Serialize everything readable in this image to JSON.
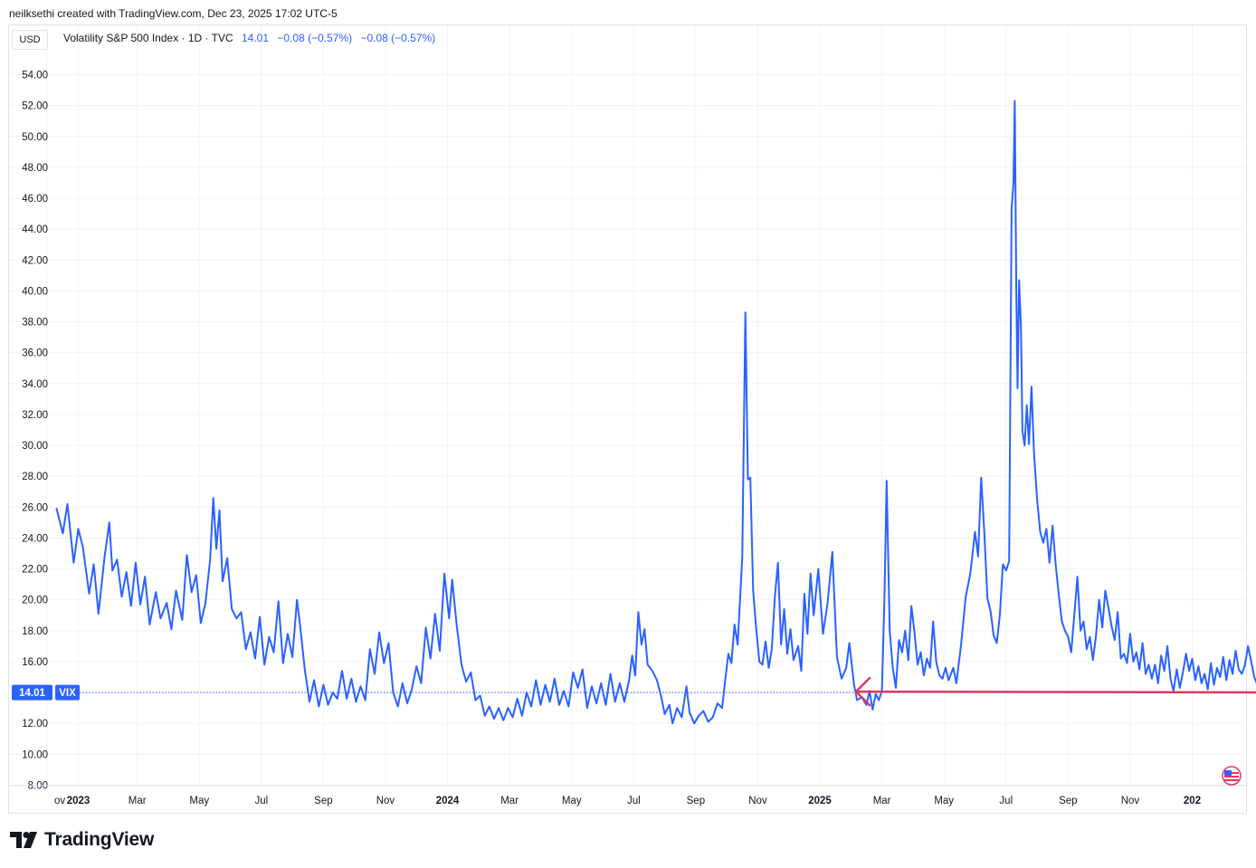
{
  "header": {
    "credit": "neilksethi created with TradingView.com, Dec 23, 2025 17:02 UTC-5"
  },
  "currency": "USD",
  "legend": {
    "symbol": "Volatility S&P 500 Index · 1D · TVC",
    "last": "14.01",
    "change1": "−0.08 (−0.57%)",
    "change2": "−0.08 (−0.57%)"
  },
  "price_badge": {
    "value": "14.01",
    "ticker": "VIX"
  },
  "footer": {
    "brand": "TradingView"
  },
  "colors": {
    "line": "#2962ff",
    "arrow": "#e0385c",
    "grid": "#f0f3fa",
    "badge": "#2962ff"
  },
  "chart_data": {
    "type": "line",
    "series_name": "VIX",
    "ylim": [
      8,
      56
    ],
    "y_ticks": [
      "8.00",
      "10.00",
      "12.00",
      "14.00",
      "16.00",
      "18.00",
      "20.00",
      "22.00",
      "24.00",
      "26.00",
      "28.00",
      "30.00",
      "32.00",
      "34.00",
      "36.00",
      "38.00",
      "40.00",
      "42.00",
      "44.00",
      "46.00",
      "48.00",
      "50.00",
      "52.00",
      "54.00"
    ],
    "x_ticks": [
      {
        "label": "ov",
        "pos": -0.32,
        "bold": false
      },
      {
        "label": "2023",
        "pos": 0.7,
        "bold": true
      },
      {
        "label": "Mar",
        "pos": 2.6,
        "bold": false
      },
      {
        "label": "May",
        "pos": 4.6,
        "bold": false
      },
      {
        "label": "Jul",
        "pos": 6.6,
        "bold": false
      },
      {
        "label": "Sep",
        "pos": 8.6,
        "bold": false
      },
      {
        "label": "Nov",
        "pos": 10.6,
        "bold": false
      },
      {
        "label": "2024",
        "pos": 12.6,
        "bold": true
      },
      {
        "label": "Mar",
        "pos": 14.6,
        "bold": false
      },
      {
        "label": "May",
        "pos": 16.6,
        "bold": false
      },
      {
        "label": "Jul",
        "pos": 18.6,
        "bold": false
      },
      {
        "label": "Sep",
        "pos": 20.6,
        "bold": false
      },
      {
        "label": "Nov",
        "pos": 22.6,
        "bold": false
      },
      {
        "label": "2025",
        "pos": 24.6,
        "bold": true
      },
      {
        "label": "Mar",
        "pos": 26.6,
        "bold": false
      },
      {
        "label": "May",
        "pos": 28.6,
        "bold": false
      },
      {
        "label": "Jul",
        "pos": 30.6,
        "bold": false
      },
      {
        "label": "Sep",
        "pos": 32.6,
        "bold": false
      },
      {
        "label": "Nov",
        "pos": 34.6,
        "bold": false
      },
      {
        "label": "202",
        "pos": 36.6,
        "bold": true
      }
    ],
    "points": [
      [
        0.0,
        25.9
      ],
      [
        0.2,
        24.3
      ],
      [
        0.35,
        26.2
      ],
      [
        0.55,
        22.4
      ],
      [
        0.7,
        24.6
      ],
      [
        0.85,
        23.4
      ],
      [
        1.05,
        20.4
      ],
      [
        1.2,
        22.3
      ],
      [
        1.35,
        19.1
      ],
      [
        1.55,
        22.8
      ],
      [
        1.7,
        25.0
      ],
      [
        1.8,
        21.9
      ],
      [
        1.95,
        22.6
      ],
      [
        2.1,
        20.2
      ],
      [
        2.25,
        21.8
      ],
      [
        2.4,
        19.6
      ],
      [
        2.55,
        22.4
      ],
      [
        2.7,
        19.7
      ],
      [
        2.85,
        21.5
      ],
      [
        3.0,
        18.4
      ],
      [
        3.2,
        20.5
      ],
      [
        3.35,
        18.8
      ],
      [
        3.55,
        19.8
      ],
      [
        3.7,
        18.1
      ],
      [
        3.85,
        20.6
      ],
      [
        4.05,
        18.7
      ],
      [
        4.2,
        22.9
      ],
      [
        4.35,
        20.5
      ],
      [
        4.5,
        21.6
      ],
      [
        4.65,
        18.5
      ],
      [
        4.8,
        19.8
      ],
      [
        4.95,
        22.6
      ],
      [
        5.05,
        26.6
      ],
      [
        5.15,
        23.3
      ],
      [
        5.25,
        25.8
      ],
      [
        5.35,
        21.2
      ],
      [
        5.5,
        22.7
      ],
      [
        5.65,
        19.4
      ],
      [
        5.8,
        18.8
      ],
      [
        5.95,
        19.2
      ],
      [
        6.1,
        16.8
      ],
      [
        6.25,
        17.9
      ],
      [
        6.4,
        16.2
      ],
      [
        6.55,
        18.9
      ],
      [
        6.7,
        15.8
      ],
      [
        6.85,
        17.6
      ],
      [
        7.0,
        16.6
      ],
      [
        7.15,
        19.9
      ],
      [
        7.3,
        15.9
      ],
      [
        7.45,
        17.8
      ],
      [
        7.6,
        16.3
      ],
      [
        7.75,
        20.0
      ],
      [
        7.85,
        18.3
      ],
      [
        8.0,
        15.5
      ],
      [
        8.15,
        13.4
      ],
      [
        8.3,
        14.8
      ],
      [
        8.45,
        13.1
      ],
      [
        8.6,
        14.5
      ],
      [
        8.75,
        13.2
      ],
      [
        8.9,
        14.0
      ],
      [
        9.05,
        13.6
      ],
      [
        9.2,
        15.4
      ],
      [
        9.35,
        13.6
      ],
      [
        9.5,
        14.9
      ],
      [
        9.65,
        13.4
      ],
      [
        9.8,
        14.4
      ],
      [
        9.95,
        13.5
      ],
      [
        10.1,
        16.8
      ],
      [
        10.25,
        15.2
      ],
      [
        10.4,
        17.9
      ],
      [
        10.55,
        15.9
      ],
      [
        10.7,
        17.2
      ],
      [
        10.85,
        14.0
      ],
      [
        11.0,
        13.1
      ],
      [
        11.15,
        14.6
      ],
      [
        11.3,
        13.3
      ],
      [
        11.45,
        14.2
      ],
      [
        11.6,
        15.7
      ],
      [
        11.75,
        14.6
      ],
      [
        11.9,
        18.2
      ],
      [
        12.05,
        16.2
      ],
      [
        12.2,
        19.1
      ],
      [
        12.35,
        16.7
      ],
      [
        12.5,
        21.7
      ],
      [
        12.65,
        18.8
      ],
      [
        12.75,
        21.3
      ],
      [
        12.9,
        18.3
      ],
      [
        13.05,
        15.8
      ],
      [
        13.2,
        14.7
      ],
      [
        13.35,
        15.3
      ],
      [
        13.5,
        13.5
      ],
      [
        13.65,
        13.8
      ],
      [
        13.8,
        12.5
      ],
      [
        13.95,
        13.1
      ],
      [
        14.1,
        12.3
      ],
      [
        14.25,
        13.0
      ],
      [
        14.4,
        12.2
      ],
      [
        14.55,
        13.0
      ],
      [
        14.7,
        12.4
      ],
      [
        14.85,
        13.6
      ],
      [
        15.0,
        12.5
      ],
      [
        15.15,
        14.0
      ],
      [
        15.3,
        13.1
      ],
      [
        15.45,
        14.8
      ],
      [
        15.6,
        13.2
      ],
      [
        15.75,
        14.5
      ],
      [
        15.9,
        13.4
      ],
      [
        16.05,
        14.9
      ],
      [
        16.2,
        13.2
      ],
      [
        16.35,
        14.1
      ],
      [
        16.5,
        13.1
      ],
      [
        16.65,
        15.3
      ],
      [
        16.8,
        14.3
      ],
      [
        16.95,
        15.5
      ],
      [
        17.1,
        13.0
      ],
      [
        17.25,
        14.4
      ],
      [
        17.4,
        13.3
      ],
      [
        17.55,
        14.6
      ],
      [
        17.7,
        13.2
      ],
      [
        17.85,
        15.2
      ],
      [
        18.0,
        13.4
      ],
      [
        18.15,
        14.6
      ],
      [
        18.3,
        13.4
      ],
      [
        18.45,
        14.8
      ],
      [
        18.55,
        16.4
      ],
      [
        18.65,
        15.1
      ],
      [
        18.75,
        19.2
      ],
      [
        18.85,
        17.1
      ],
      [
        18.95,
        18.1
      ],
      [
        19.05,
        15.8
      ],
      [
        19.2,
        15.4
      ],
      [
        19.35,
        14.8
      ],
      [
        19.5,
        13.6
      ],
      [
        19.6,
        12.6
      ],
      [
        19.75,
        13.2
      ],
      [
        19.85,
        12.0
      ],
      [
        20.0,
        13.0
      ],
      [
        20.15,
        12.4
      ],
      [
        20.3,
        14.4
      ],
      [
        20.4,
        12.7
      ],
      [
        20.55,
        12.0
      ],
      [
        20.7,
        12.5
      ],
      [
        20.85,
        12.8
      ],
      [
        21.0,
        12.1
      ],
      [
        21.15,
        12.4
      ],
      [
        21.3,
        13.3
      ],
      [
        21.45,
        13.0
      ],
      [
        21.55,
        14.8
      ],
      [
        21.65,
        16.5
      ],
      [
        21.75,
        15.9
      ],
      [
        21.85,
        18.4
      ],
      [
        21.95,
        17.1
      ],
      [
        22.1,
        22.8
      ],
      [
        22.2,
        38.6
      ],
      [
        22.28,
        27.8
      ],
      [
        22.36,
        27.9
      ],
      [
        22.45,
        20.6
      ],
      [
        22.55,
        18.1
      ],
      [
        22.65,
        16.0
      ],
      [
        22.75,
        15.8
      ],
      [
        22.85,
        17.3
      ],
      [
        22.95,
        15.6
      ],
      [
        23.05,
        16.8
      ],
      [
        23.15,
        20.2
      ],
      [
        23.25,
        22.4
      ],
      [
        23.35,
        17.1
      ],
      [
        23.45,
        19.4
      ],
      [
        23.55,
        16.5
      ],
      [
        23.65,
        18.1
      ],
      [
        23.75,
        16.1
      ],
      [
        23.9,
        17.0
      ],
      [
        24.0,
        15.4
      ],
      [
        24.1,
        20.4
      ],
      [
        24.2,
        17.8
      ],
      [
        24.3,
        21.7
      ],
      [
        24.4,
        19.0
      ],
      [
        24.55,
        22.0
      ],
      [
        24.7,
        17.8
      ],
      [
        24.85,
        19.8
      ],
      [
        25.0,
        23.1
      ],
      [
        25.15,
        16.3
      ],
      [
        25.3,
        14.9
      ],
      [
        25.45,
        15.6
      ],
      [
        25.55,
        17.2
      ],
      [
        25.7,
        14.5
      ],
      [
        25.8,
        13.5
      ],
      [
        25.95,
        13.7
      ],
      [
        26.1,
        13.2
      ],
      [
        26.2,
        14.1
      ],
      [
        26.3,
        12.9
      ],
      [
        26.4,
        13.9
      ],
      [
        26.5,
        13.5
      ],
      [
        26.6,
        14.1
      ],
      [
        26.68,
        20.1
      ],
      [
        26.75,
        27.7
      ],
      [
        26.85,
        18.0
      ],
      [
        26.95,
        15.6
      ],
      [
        27.05,
        14.3
      ],
      [
        27.15,
        17.4
      ],
      [
        27.25,
        16.6
      ],
      [
        27.35,
        18.0
      ],
      [
        27.45,
        16.1
      ],
      [
        27.55,
        19.6
      ],
      [
        27.65,
        17.9
      ],
      [
        27.75,
        15.8
      ],
      [
        27.85,
        16.6
      ],
      [
        27.95,
        15.1
      ],
      [
        28.05,
        16.2
      ],
      [
        28.15,
        15.6
      ],
      [
        28.25,
        18.6
      ],
      [
        28.35,
        16.0
      ],
      [
        28.45,
        15.1
      ],
      [
        28.55,
        14.9
      ],
      [
        28.65,
        15.6
      ],
      [
        28.75,
        14.8
      ],
      [
        28.9,
        15.6
      ],
      [
        29.0,
        14.6
      ],
      [
        29.15,
        17.1
      ],
      [
        29.3,
        20.2
      ],
      [
        29.45,
        21.7
      ],
      [
        29.6,
        24.4
      ],
      [
        29.7,
        22.8
      ],
      [
        29.8,
        27.9
      ],
      [
        29.9,
        24.3
      ],
      [
        30.0,
        20.1
      ],
      [
        30.1,
        19.3
      ],
      [
        30.2,
        17.7
      ],
      [
        30.3,
        17.2
      ],
      [
        30.4,
        19.0
      ],
      [
        30.5,
        22.3
      ],
      [
        30.6,
        21.9
      ],
      [
        30.7,
        22.5
      ],
      [
        30.78,
        45.3
      ],
      [
        30.84,
        47.0
      ],
      [
        30.88,
        52.3
      ],
      [
        30.93,
        40.1
      ],
      [
        30.97,
        33.7
      ],
      [
        31.02,
        40.7
      ],
      [
        31.08,
        37.8
      ],
      [
        31.13,
        30.9
      ],
      [
        31.2,
        30.0
      ],
      [
        31.27,
        32.6
      ],
      [
        31.34,
        30.1
      ],
      [
        31.42,
        33.8
      ],
      [
        31.5,
        29.6
      ],
      [
        31.6,
        26.5
      ],
      [
        31.7,
        24.4
      ],
      [
        31.8,
        23.7
      ],
      [
        31.9,
        24.6
      ],
      [
        32.0,
        22.4
      ],
      [
        32.1,
        24.8
      ],
      [
        32.2,
        22.3
      ],
      [
        32.3,
        20.3
      ],
      [
        32.4,
        18.6
      ],
      [
        32.5,
        18.0
      ],
      [
        32.6,
        17.6
      ],
      [
        32.7,
        16.6
      ],
      [
        32.8,
        19.0
      ],
      [
        32.9,
        21.5
      ],
      [
        33.0,
        18.0
      ],
      [
        33.1,
        18.6
      ],
      [
        33.2,
        16.8
      ],
      [
        33.3,
        17.6
      ],
      [
        33.4,
        16.1
      ],
      [
        33.5,
        17.7
      ],
      [
        33.6,
        20.0
      ],
      [
        33.7,
        18.2
      ],
      [
        33.8,
        20.6
      ],
      [
        33.9,
        19.5
      ],
      [
        34.0,
        18.3
      ],
      [
        34.1,
        17.4
      ],
      [
        34.2,
        19.2
      ],
      [
        34.3,
        16.2
      ],
      [
        34.4,
        16.5
      ],
      [
        34.5,
        15.9
      ],
      [
        34.6,
        17.8
      ],
      [
        34.7,
        16.0
      ],
      [
        34.8,
        16.6
      ],
      [
        34.9,
        15.5
      ],
      [
        35.0,
        17.2
      ],
      [
        35.1,
        15.2
      ],
      [
        35.2,
        15.8
      ],
      [
        35.3,
        14.9
      ],
      [
        35.4,
        15.8
      ],
      [
        35.5,
        14.6
      ],
      [
        35.6,
        16.4
      ],
      [
        35.7,
        15.4
      ],
      [
        35.8,
        17.0
      ],
      [
        35.9,
        14.9
      ],
      [
        36.0,
        14.1
      ],
      [
        36.1,
        15.5
      ],
      [
        36.2,
        14.3
      ],
      [
        36.3,
        15.3
      ],
      [
        36.4,
        16.5
      ],
      [
        36.5,
        15.4
      ],
      [
        36.6,
        16.2
      ],
      [
        36.7,
        14.8
      ],
      [
        36.8,
        15.7
      ],
      [
        36.9,
        14.6
      ],
      [
        37.0,
        15.2
      ],
      [
        37.1,
        14.2
      ],
      [
        37.2,
        15.9
      ],
      [
        37.3,
        14.5
      ],
      [
        37.4,
        15.6
      ],
      [
        37.5,
        15.0
      ],
      [
        37.6,
        16.3
      ],
      [
        37.7,
        14.8
      ],
      [
        37.8,
        16.1
      ],
      [
        37.9,
        15.2
      ],
      [
        38.0,
        16.7
      ],
      [
        38.1,
        15.5
      ],
      [
        38.2,
        15.2
      ],
      [
        38.3,
        15.8
      ],
      [
        38.4,
        17.0
      ],
      [
        38.5,
        16.0
      ],
      [
        38.6,
        15.0
      ],
      [
        38.7,
        14.5
      ],
      [
        38.8,
        14.7
      ],
      [
        38.9,
        14.4
      ],
      [
        39.0,
        14.2
      ],
      [
        39.1,
        14.1
      ],
      [
        39.2,
        14.0
      ],
      [
        39.3,
        14.5
      ],
      [
        39.4,
        14.3
      ],
      [
        39.5,
        14.8
      ],
      [
        39.6,
        14.5
      ],
      [
        39.7,
        14.2
      ],
      [
        39.8,
        14.9
      ],
      [
        39.9,
        15.1
      ],
      [
        40.0,
        14.6
      ],
      [
        40.1,
        15.2
      ],
      [
        40.2,
        14.8
      ],
      [
        40.3,
        14.6
      ],
      [
        40.4,
        14.3
      ],
      [
        40.5,
        14.1
      ],
      [
        40.6,
        14.3
      ],
      [
        40.7,
        14.0
      ]
    ]
  }
}
